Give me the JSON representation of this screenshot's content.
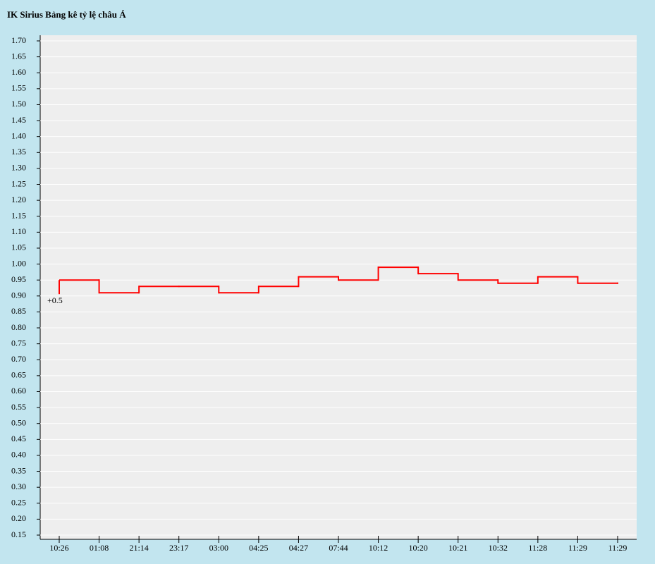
{
  "chart_data": {
    "type": "step",
    "title": "IK Sirius Bảng kê tỷ lệ châu Á",
    "annotation": "+0.5",
    "categories": [
      "10:26",
      "01:08",
      "21:14",
      "23:17",
      "03:00",
      "04:25",
      "04:27",
      "07:44",
      "10:12",
      "10:20",
      "10:21",
      "10:32",
      "11:28",
      "11:29",
      "11:29"
    ],
    "values": [
      0.95,
      0.91,
      0.93,
      0.93,
      0.91,
      0.93,
      0.96,
      0.95,
      0.99,
      0.97,
      0.95,
      0.94,
      0.96,
      0.94,
      0.94
    ],
    "color": "#ff0000",
    "ylim": [
      0.15,
      1.7
    ],
    "yticks": [
      {
        "value": 0.15,
        "label": "0.15"
      },
      {
        "value": 0.2,
        "label": "0.20"
      },
      {
        "value": 0.25,
        "label": "0.25"
      },
      {
        "value": 0.3,
        "label": "0.30"
      },
      {
        "value": 0.35,
        "label": "0.35"
      },
      {
        "value": 0.4,
        "label": "0.40"
      },
      {
        "value": 0.45,
        "label": "0.45"
      },
      {
        "value": 0.5,
        "label": "0.50"
      },
      {
        "value": 0.55,
        "label": "0.55"
      },
      {
        "value": 0.6,
        "label": "0.60"
      },
      {
        "value": 0.65,
        "label": "0.65"
      },
      {
        "value": 0.7,
        "label": "0.70"
      },
      {
        "value": 0.75,
        "label": "0.75"
      },
      {
        "value": 0.8,
        "label": "0.80"
      },
      {
        "value": 0.85,
        "label": "0.85"
      },
      {
        "value": 0.9,
        "label": "0.90"
      },
      {
        "value": 0.95,
        "label": "0.95"
      },
      {
        "value": 1.0,
        "label": "1.00"
      },
      {
        "value": 1.05,
        "label": "1.05"
      },
      {
        "value": 1.1,
        "label": "1.10"
      },
      {
        "value": 1.15,
        "label": "1.15"
      },
      {
        "value": 1.2,
        "label": "1.20"
      },
      {
        "value": 1.25,
        "label": "1.25"
      },
      {
        "value": 1.3,
        "label": "1.30"
      },
      {
        "value": 1.35,
        "label": "1.35"
      },
      {
        "value": 1.4,
        "label": "1.40"
      },
      {
        "value": 1.45,
        "label": "1.45"
      },
      {
        "value": 1.5,
        "label": "1.50"
      },
      {
        "value": 1.55,
        "label": "1.55"
      },
      {
        "value": 1.6,
        "label": "1.60"
      },
      {
        "value": 1.65,
        "label": "1.65"
      },
      {
        "value": 1.7,
        "label": "1.70"
      }
    ],
    "grid": true
  }
}
